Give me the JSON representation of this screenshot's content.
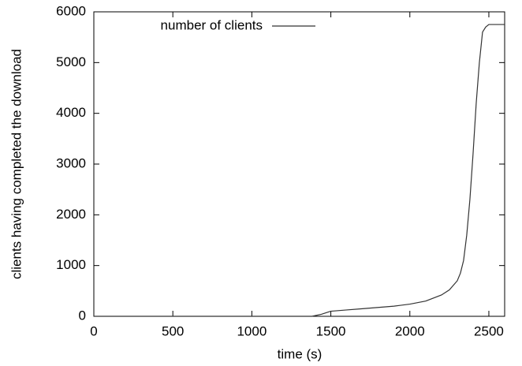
{
  "chart_data": {
    "type": "line",
    "xlabel": "time (s)",
    "ylabel": "clients having completed the download",
    "xlim": [
      0,
      2600
    ],
    "xticks": [
      0,
      500,
      1000,
      1500,
      2000,
      2500
    ],
    "ylim": [
      0,
      6000
    ],
    "yticks": [
      0,
      1000,
      2000,
      3000,
      4000,
      5000,
      6000
    ],
    "legend": "top-left",
    "x": [
      0,
      1380,
      1440,
      1480,
      1500,
      1600,
      1700,
      1800,
      1900,
      2000,
      2100,
      2200,
      2250,
      2300,
      2320,
      2340,
      2360,
      2380,
      2400,
      2420,
      2440,
      2460,
      2480,
      2500,
      2600
    ],
    "series": [
      {
        "name": "number of clients",
        "color": "#333333",
        "values": [
          0,
          0,
          40,
          80,
          100,
          125,
          150,
          175,
          200,
          240,
          300,
          420,
          520,
          700,
          850,
          1100,
          1600,
          2300,
          3200,
          4200,
          5000,
          5600,
          5700,
          5750,
          5750
        ]
      }
    ]
  }
}
